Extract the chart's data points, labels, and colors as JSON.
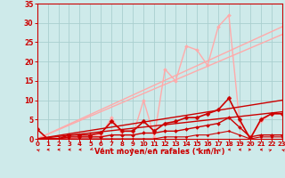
{
  "background_color": "#ceeaea",
  "grid_color": "#aacfcf",
  "xlabel": "Vent moyen/en rafales ( km/h )",
  "xlim": [
    0,
    23
  ],
  "ylim": [
    0,
    35
  ],
  "xticks": [
    0,
    1,
    2,
    3,
    4,
    5,
    6,
    7,
    8,
    9,
    10,
    11,
    12,
    13,
    14,
    15,
    16,
    17,
    18,
    19,
    20,
    21,
    22,
    23
  ],
  "yticks": [
    0,
    5,
    10,
    15,
    20,
    25,
    30,
    35
  ],
  "lines": [
    {
      "x": [
        0,
        23
      ],
      "y": [
        0,
        29
      ],
      "color": "#ffaaaa",
      "lw": 1.0,
      "marker": null,
      "ms": 0
    },
    {
      "x": [
        0,
        23
      ],
      "y": [
        0,
        27
      ],
      "color": "#ffaaaa",
      "lw": 1.0,
      "marker": null,
      "ms": 0
    },
    {
      "x": [
        0,
        1,
        2,
        3,
        4,
        5,
        6,
        7,
        8,
        9,
        10,
        11,
        12,
        13,
        14,
        15,
        16,
        17,
        18,
        19,
        20,
        21,
        22,
        23
      ],
      "y": [
        0,
        0,
        0,
        0,
        0.5,
        0.5,
        1,
        5.5,
        1,
        1,
        10,
        0.5,
        18,
        15,
        24,
        23,
        19,
        29,
        32,
        4.5,
        0.5,
        4.5,
        6.5,
        6.5
      ],
      "color": "#ffaaaa",
      "lw": 1.0,
      "marker": "D",
      "ms": 2.0
    },
    {
      "x": [
        0,
        23
      ],
      "y": [
        0,
        10
      ],
      "color": "#cc0000",
      "lw": 1.0,
      "marker": null,
      "ms": 0
    },
    {
      "x": [
        0,
        23
      ],
      "y": [
        0,
        7
      ],
      "color": "#cc0000",
      "lw": 1.0,
      "marker": null,
      "ms": 0
    },
    {
      "x": [
        0,
        1,
        2,
        3,
        4,
        5,
        6,
        7,
        8,
        9,
        10,
        11,
        12,
        13,
        14,
        15,
        16,
        17,
        18,
        19,
        20,
        21,
        22,
        23
      ],
      "y": [
        2.5,
        0,
        0,
        1,
        1,
        1,
        1.5,
        4.5,
        2,
        2,
        4.5,
        2,
        4,
        4.5,
        5.5,
        5.5,
        6.5,
        7.5,
        10.5,
        5,
        0,
        5,
        6.5,
        6.5
      ],
      "color": "#cc0000",
      "lw": 1.2,
      "marker": "D",
      "ms": 2.5
    },
    {
      "x": [
        0,
        1,
        2,
        3,
        4,
        5,
        6,
        7,
        8,
        9,
        10,
        11,
        12,
        13,
        14,
        15,
        16,
        17,
        18,
        19,
        20,
        21,
        22,
        23
      ],
      "y": [
        0,
        0,
        0,
        0.5,
        0.5,
        0.5,
        0.5,
        1,
        1,
        1,
        1.5,
        1.5,
        2,
        2,
        2.5,
        3,
        3.5,
        4,
        5.5,
        3,
        0.5,
        1,
        1,
        1
      ],
      "color": "#cc0000",
      "lw": 1.0,
      "marker": "D",
      "ms": 2.0
    },
    {
      "x": [
        0,
        1,
        2,
        3,
        4,
        5,
        6,
        7,
        8,
        9,
        10,
        11,
        12,
        13,
        14,
        15,
        16,
        17,
        18,
        19,
        20,
        21,
        22,
        23
      ],
      "y": [
        0,
        0,
        0,
        0,
        0,
        0,
        0,
        0,
        0,
        0,
        0,
        0,
        0.5,
        0.5,
        0.5,
        1,
        1,
        1.5,
        2,
        1,
        0,
        0.5,
        0.5,
        0.5
      ],
      "color": "#cc0000",
      "lw": 0.8,
      "marker": "D",
      "ms": 1.5
    }
  ],
  "wind_arrows_x": [
    0,
    1,
    2,
    3,
    4,
    5,
    6,
    7,
    8,
    9,
    10,
    11,
    12,
    13,
    14,
    15,
    16,
    17,
    18,
    19,
    20,
    21,
    22,
    23
  ],
  "wind_arrows_deg": [
    225,
    270,
    270,
    270,
    270,
    315,
    315,
    90,
    90,
    90,
    135,
    270,
    135,
    135,
    225,
    270,
    270,
    225,
    270,
    270,
    90,
    270,
    135,
    225
  ]
}
